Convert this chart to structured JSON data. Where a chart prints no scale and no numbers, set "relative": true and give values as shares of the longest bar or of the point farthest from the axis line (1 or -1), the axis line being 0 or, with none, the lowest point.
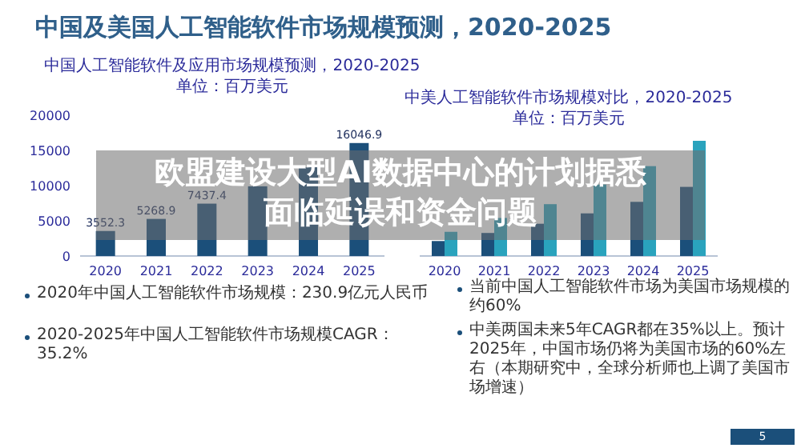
{
  "chart_data": [
    {
      "type": "bar",
      "title": "中国人工智能软件及应用市场规模预测，2020-2025",
      "subtitle": "单位：百万美元",
      "categories": [
        "2020",
        "2021",
        "2022",
        "2023",
        "2024",
        "2025"
      ],
      "series": [
        {
          "color": "#1b4f7a",
          "values": [
            3552.3,
            5268.9,
            7437.4,
            9900,
            12600,
            16046.9
          ],
          "value_labels": [
            "3552.3",
            "5268.9",
            "7437.4",
            null,
            null,
            "16046.9"
          ]
        }
      ],
      "ylim": [
        0,
        20000
      ],
      "yticks": [
        0,
        5000,
        10000,
        15000,
        20000
      ]
    },
    {
      "type": "bar",
      "relative": true,
      "title": "中美人工智能软件市场规模对比，2020-2025",
      "subtitle": "单位：百万美元",
      "categories": [
        "2020",
        "2021",
        "2022",
        "2023",
        "2024",
        "2025"
      ],
      "series": [
        {
          "color": "#1b4f7a",
          "values": [
            0.13,
            0.2,
            0.28,
            0.37,
            0.47,
            0.6
          ]
        },
        {
          "color": "#2aa3bd",
          "values": [
            0.21,
            0.33,
            0.45,
            0.62,
            0.78,
            1
          ]
        }
      ]
    },
    {
      "type": "other",
      "title": "中国及美国人工智能软件市场规模预测，2020-2025",
      "annotations": [
        "欧盟建设大型AI数据中心的计划据悉",
        "面临延误和资金问题",
        "2020年中国人工智能软件市场规模：230.9亿元人民币",
        "2020-2025年中国人工智能软件市场规模CAGR：35.2%",
        "当前中国人工智能软件市场为美国市场规模的约60%",
        "中美两国未来5年CAGR都在35%以上。预计2025年，中国市场仍将为美国市场的60%左右（本期研究中，全球分析师也上调了美国市场增速）",
        "5"
      ]
    }
  ]
}
